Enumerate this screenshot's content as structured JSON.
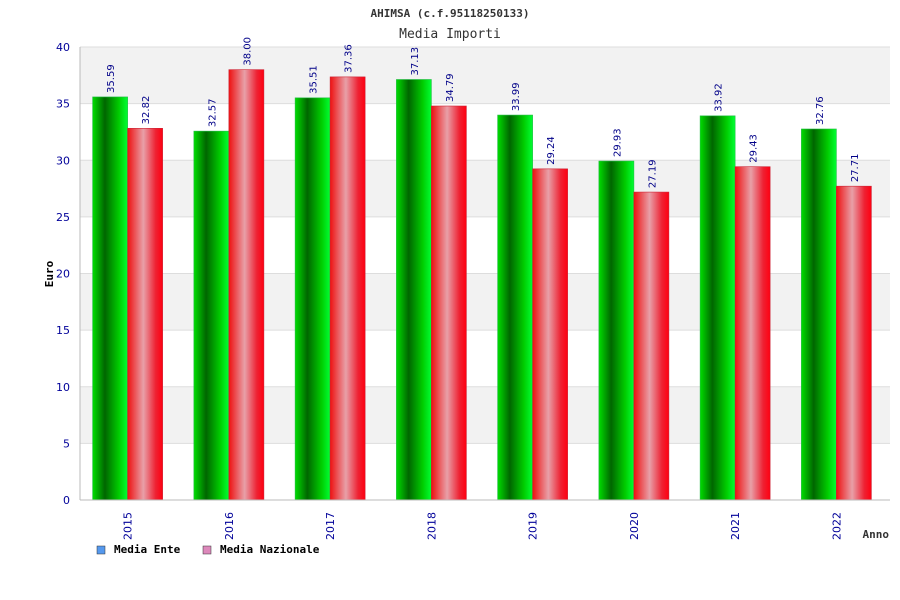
{
  "chart_data": {
    "type": "bar",
    "title": "AHIMSA (c.f.95118250133)",
    "subtitle": "Media Importi",
    "xlabel": "Anno",
    "ylabel": "Euro",
    "ylim": [
      0,
      40
    ],
    "yticks": [
      "0",
      "5",
      "10",
      "15",
      "20",
      "25",
      "30",
      "35",
      "40"
    ],
    "categories": [
      "2015",
      "2016",
      "2017",
      "2018",
      "2019",
      "2020",
      "2021",
      "2022"
    ],
    "series": [
      {
        "name": "Media Ente",
        "values": [
          35.59,
          32.57,
          35.51,
          37.13,
          33.99,
          29.93,
          33.92,
          32.76
        ],
        "labels": [
          "35.59",
          "32.57",
          "35.51",
          "37.13",
          "33.99",
          "29.93",
          "33.92",
          "32.76"
        ],
        "color": "#00cc00",
        "legend_color": "#5599ee"
      },
      {
        "name": "Media Nazionale",
        "values": [
          32.82,
          38.0,
          37.36,
          34.79,
          29.24,
          27.19,
          29.43,
          27.71
        ],
        "labels": [
          "32.82",
          "38.00",
          "37.36",
          "34.79",
          "29.24",
          "27.19",
          "29.43",
          "27.71"
        ],
        "color": "#ee1122",
        "legend_color": "#dd88bb"
      }
    ],
    "legend_position": "bottom-left",
    "grid": true
  },
  "colors": {
    "axis_text": "#000099",
    "label_text": "#000088",
    "band": "#f2f2f2",
    "grid": "#dddddd"
  }
}
